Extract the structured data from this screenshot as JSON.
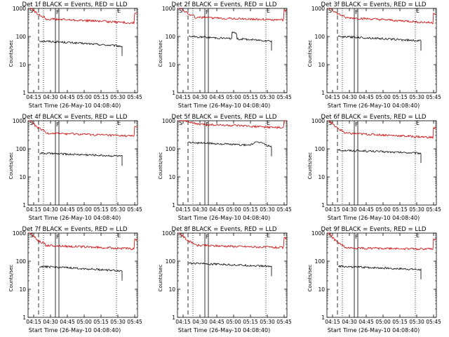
{
  "chart_data": [
    {
      "type": "line",
      "title": "Det 1f BLACK = Events, RED = LLD",
      "xlabel": "Start Time (26-May-10 04:08:40)",
      "ylabel": "Counts/sec",
      "yscale": "log",
      "ylim": [
        1,
        1000
      ],
      "x_ticks": [
        "04:15",
        "04:30",
        "04:45",
        "05:00",
        "05:15",
        "05:30",
        "05:45"
      ],
      "y_ticks": [
        "1",
        "10",
        "100",
        "1000"
      ],
      "markers": [
        "S",
        "F",
        "E"
      ],
      "series": [
        {
          "name": "BLACK = Events",
          "color": "#000000",
          "start": 70,
          "end": 45,
          "hump": 0,
          "spike": 0
        },
        {
          "name": "RED = LLD",
          "color": "#cc0000",
          "start": 450,
          "end": 300,
          "hump": 0,
          "spike": 0
        }
      ]
    },
    {
      "type": "line",
      "title": "Det 2f BLACK = Events, RED = LLD",
      "xlabel": "Start Time (26-May-10 04:08:40)",
      "ylabel": "Counts/sec",
      "yscale": "log",
      "ylim": [
        1,
        1000
      ],
      "x_ticks": [
        "04:15",
        "04:30",
        "04:45",
        "05:00",
        "05:15",
        "05:30",
        "05:45"
      ],
      "y_ticks": [
        "1",
        "10",
        "100",
        "1000"
      ],
      "markers": [
        "S",
        "F",
        "E"
      ],
      "series": [
        {
          "name": "BLACK = Events",
          "color": "#000000",
          "start": 100,
          "end": 70,
          "hump": 0,
          "spike": 1
        },
        {
          "name": "RED = LLD",
          "color": "#cc0000",
          "start": 500,
          "end": 380,
          "hump": 0,
          "spike": 0
        }
      ]
    },
    {
      "type": "line",
      "title": "Det 3f BLACK = Events, RED = LLD",
      "xlabel": "Start Time (26-May-10 04:08:40)",
      "ylabel": "Counts/sec",
      "yscale": "log",
      "ylim": [
        1,
        1000
      ],
      "x_ticks": [
        "04:15",
        "04:30",
        "04:45",
        "05:00",
        "05:15",
        "05:30",
        "05:45"
      ],
      "y_ticks": [
        "1",
        "10",
        "100",
        "1000"
      ],
      "markers": [
        "S",
        "F",
        "E"
      ],
      "series": [
        {
          "name": "BLACK = Events",
          "color": "#000000",
          "start": 100,
          "end": 70,
          "hump": 0,
          "spike": 0
        },
        {
          "name": "RED = LLD",
          "color": "#cc0000",
          "start": 500,
          "end": 300,
          "hump": 0,
          "spike": 0
        }
      ]
    },
    {
      "type": "line",
      "title": "Det 4f BLACK = Events, RED = LLD",
      "xlabel": "Start Time (26-May-10 04:08:40)",
      "ylabel": "Counts/sec",
      "yscale": "log",
      "ylim": [
        1,
        1000
      ],
      "x_ticks": [
        "04:15",
        "04:30",
        "04:45",
        "05:00",
        "05:15",
        "05:30",
        "05:45"
      ],
      "y_ticks": [
        "1",
        "10",
        "100",
        "1000"
      ],
      "markers": [
        "S",
        "F",
        "E"
      ],
      "series": [
        {
          "name": "BLACK = Events",
          "color": "#000000",
          "start": 70,
          "end": 55,
          "hump": 0,
          "spike": 0
        },
        {
          "name": "RED = LLD",
          "color": "#cc0000",
          "start": 380,
          "end": 280,
          "hump": 0,
          "spike": 0
        }
      ]
    },
    {
      "type": "line",
      "title": "Det 5f BLACK = Events, RED = LLD",
      "xlabel": "Start Time (26-May-10 04:08:40)",
      "ylabel": "Counts/sec",
      "yscale": "log",
      "ylim": [
        1,
        1000
      ],
      "x_ticks": [
        "04:15",
        "04:30",
        "04:45",
        "05:00",
        "05:15",
        "05:30",
        "05:45"
      ],
      "y_ticks": [
        "1",
        "10",
        "100",
        "1000"
      ],
      "markers": [
        "S",
        "F",
        "E"
      ],
      "series": [
        {
          "name": "BLACK = Events",
          "color": "#000000",
          "start": 170,
          "end": 120,
          "hump": 1,
          "spike": 0
        },
        {
          "name": "RED = LLD",
          "color": "#cc0000",
          "start": 800,
          "end": 550,
          "hump": 0,
          "spike": 0
        }
      ]
    },
    {
      "type": "line",
      "title": "Det 6f BLACK = Events, RED = LLD",
      "xlabel": "Start Time (26-May-10 04:08:40)",
      "ylabel": "Counts/sec",
      "yscale": "log",
      "ylim": [
        1,
        1000
      ],
      "x_ticks": [
        "04:15",
        "04:30",
        "04:45",
        "05:00",
        "05:15",
        "05:30",
        "05:45"
      ],
      "y_ticks": [
        "1",
        "10",
        "100",
        "1000"
      ],
      "markers": [
        "S",
        "F",
        "E"
      ],
      "series": [
        {
          "name": "BLACK = Events",
          "color": "#000000",
          "start": 90,
          "end": 70,
          "hump": 0,
          "spike": 0
        },
        {
          "name": "RED = LLD",
          "color": "#cc0000",
          "start": 380,
          "end": 250,
          "hump": 0,
          "spike": 0
        }
      ]
    },
    {
      "type": "line",
      "title": "Det 7f BLACK = Events, RED = LLD",
      "xlabel": "Start Time (26-May-10 04:08:40)",
      "ylabel": "Counts/sec",
      "yscale": "log",
      "ylim": [
        1,
        1000
      ],
      "x_ticks": [
        "04:15",
        "04:30",
        "04:45",
        "05:00",
        "05:15",
        "05:30",
        "05:45"
      ],
      "y_ticks": [
        "1",
        "10",
        "100",
        "1000"
      ],
      "markers": [
        "S",
        "F",
        "E"
      ],
      "series": [
        {
          "name": "BLACK = Events",
          "color": "#000000",
          "start": 65,
          "end": 45,
          "hump": 0,
          "spike": 0
        },
        {
          "name": "RED = LLD",
          "color": "#cc0000",
          "start": 380,
          "end": 270,
          "hump": 0,
          "spike": 0
        }
      ]
    },
    {
      "type": "line",
      "title": "Det 8f BLACK = Events, RED = LLD",
      "xlabel": "Start Time (26-May-10 04:08:40)",
      "ylabel": "Counts/sec",
      "yscale": "log",
      "ylim": [
        1,
        1000
      ],
      "x_ticks": [
        "04:15",
        "04:30",
        "04:45",
        "05:00",
        "05:15",
        "05:30",
        "05:45"
      ],
      "y_ticks": [
        "1",
        "10",
        "100",
        "1000"
      ],
      "markers": [
        "S",
        "F",
        "E"
      ],
      "series": [
        {
          "name": "BLACK = Events",
          "color": "#000000",
          "start": 85,
          "end": 65,
          "hump": 0,
          "spike": 0
        },
        {
          "name": "RED = LLD",
          "color": "#cc0000",
          "start": 380,
          "end": 300,
          "hump": 0,
          "spike": 0
        }
      ]
    },
    {
      "type": "line",
      "title": "Det 9f BLACK = Events, RED = LLD",
      "xlabel": "Start Time (26-May-10 04:08:40)",
      "ylabel": "Counts/sec",
      "yscale": "log",
      "ylim": [
        1,
        1000
      ],
      "x_ticks": [
        "04:15",
        "04:30",
        "04:45",
        "05:00",
        "05:15",
        "05:30",
        "05:45"
      ],
      "y_ticks": [
        "1",
        "10",
        "100",
        "1000"
      ],
      "markers": [
        "S",
        "F",
        "E"
      ],
      "series": [
        {
          "name": "BLACK = Events",
          "color": "#000000",
          "start": 65,
          "end": 50,
          "hump": 0,
          "spike": 0
        },
        {
          "name": "RED = LLD",
          "color": "#cc0000",
          "start": 300,
          "end": 270,
          "hump": 0,
          "spike": 0
        }
      ]
    }
  ]
}
